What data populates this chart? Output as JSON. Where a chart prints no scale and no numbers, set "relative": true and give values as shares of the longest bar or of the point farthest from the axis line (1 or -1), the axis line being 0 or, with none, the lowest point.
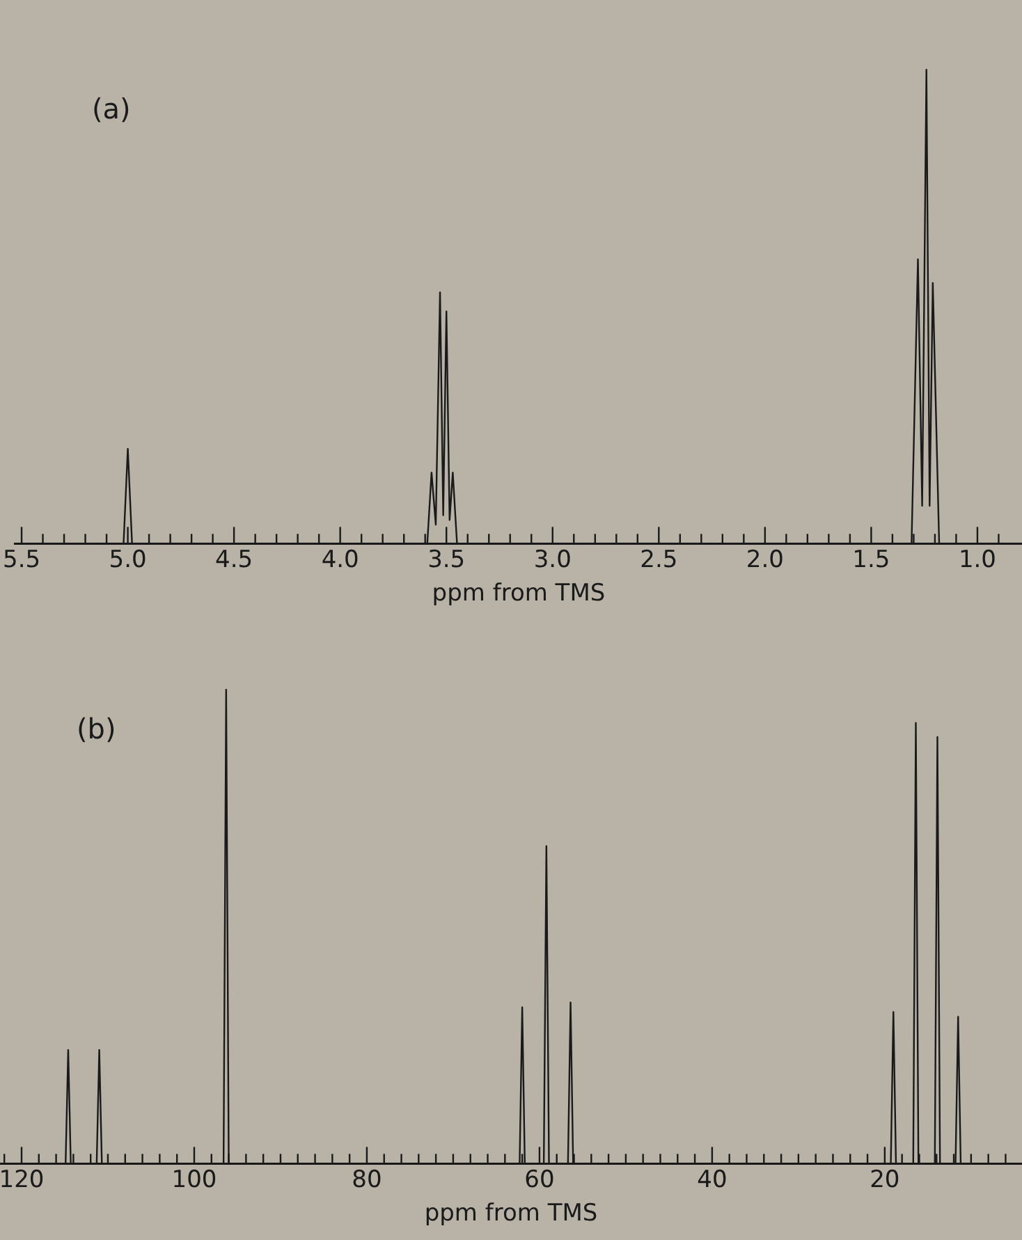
{
  "chart_data": [
    {
      "type": "line",
      "relative": true,
      "xlabel": "ppm from TMS",
      "annotations": [
        "(a)"
      ],
      "marker": "none",
      "xlim": [
        5.53,
        0.79
      ],
      "xticks": [
        5.5,
        {
          "value": 5.4,
          "label": null
        },
        {
          "value": 5.3,
          "label": null
        },
        {
          "value": 5.2,
          "label": null
        },
        {
          "value": 5.1,
          "label": null
        },
        {
          "value": 5,
          "label": "5.0"
        },
        {
          "value": 4.9,
          "label": null
        },
        {
          "value": 4.8,
          "label": null
        },
        {
          "value": 4.7,
          "label": null
        },
        {
          "value": 4.6,
          "label": null
        },
        4.5,
        {
          "value": 4.4,
          "label": null
        },
        {
          "value": 4.3,
          "label": null
        },
        {
          "value": 4.2,
          "label": null
        },
        {
          "value": 4.1,
          "label": null
        },
        {
          "value": 4,
          "label": "4.0"
        },
        {
          "value": 3.9,
          "label": null
        },
        {
          "value": 3.8,
          "label": null
        },
        {
          "value": 3.7,
          "label": null
        },
        {
          "value": 3.6,
          "label": null
        },
        3.5,
        {
          "value": 3.4,
          "label": null
        },
        {
          "value": 3.3,
          "label": null
        },
        {
          "value": 3.2,
          "label": null
        },
        {
          "value": 3.1,
          "label": null
        },
        {
          "value": 3,
          "label": "3.0"
        },
        {
          "value": 2.9,
          "label": null
        },
        {
          "value": 2.8,
          "label": null
        },
        {
          "value": 2.7,
          "label": null
        },
        {
          "value": 2.6,
          "label": null
        },
        2.5,
        {
          "value": 2.4,
          "label": null
        },
        {
          "value": 2.3,
          "label": null
        },
        {
          "value": 2.2,
          "label": null
        },
        {
          "value": 2.1,
          "label": null
        },
        {
          "value": 2,
          "label": "2.0"
        },
        {
          "value": 1.9,
          "label": null
        },
        {
          "value": 1.8,
          "label": null
        },
        {
          "value": 1.7,
          "label": null
        },
        {
          "value": 1.6,
          "label": null
        },
        1.5,
        {
          "value": 1.4,
          "label": null
        },
        {
          "value": 1.3,
          "label": null
        },
        {
          "value": 1.2,
          "label": null
        },
        {
          "value": 1.1,
          "label": null
        },
        {
          "value": 1,
          "label": "1.0"
        },
        {
          "value": 0.9,
          "label": null
        }
      ],
      "series": [
        {
          "color": "#1a1a1a",
          "x": [
            5.53,
            5.02,
            5.0,
            4.98,
            3.59,
            3.57,
            3.55,
            3.53,
            3.515,
            3.5,
            3.485,
            3.47,
            3.45,
            1.31,
            1.28,
            1.26,
            1.24,
            1.225,
            1.21,
            1.18,
            0.79
          ],
          "values": [
            0,
            0,
            0.2,
            0,
            0,
            0.15,
            0.04,
            0.53,
            0.06,
            0.49,
            0.05,
            0.15,
            0,
            0,
            0.6,
            0.08,
            1,
            0.08,
            0.55,
            0,
            0
          ]
        }
      ]
    },
    {
      "type": "line",
      "relative": true,
      "xlabel": "ppm from TMS",
      "annotations": [
        "(b)"
      ],
      "marker": "none",
      "xlim": [
        122.5,
        4.1
      ],
      "xticks": [
        {
          "value": 122,
          "label": null
        },
        120,
        {
          "value": 118,
          "label": null
        },
        {
          "value": 116,
          "label": null
        },
        {
          "value": 114,
          "label": null
        },
        {
          "value": 112,
          "label": null
        },
        {
          "value": 110,
          "label": null
        },
        {
          "value": 108,
          "label": null
        },
        {
          "value": 106,
          "label": null
        },
        {
          "value": 104,
          "label": null
        },
        {
          "value": 102,
          "label": null
        },
        100,
        {
          "value": 98,
          "label": null
        },
        {
          "value": 96,
          "label": null
        },
        {
          "value": 94,
          "label": null
        },
        {
          "value": 92,
          "label": null
        },
        {
          "value": 90,
          "label": null
        },
        {
          "value": 88,
          "label": null
        },
        {
          "value": 86,
          "label": null
        },
        {
          "value": 84,
          "label": null
        },
        {
          "value": 82,
          "label": null
        },
        80,
        {
          "value": 78,
          "label": null
        },
        {
          "value": 76,
          "label": null
        },
        {
          "value": 74,
          "label": null
        },
        {
          "value": 72,
          "label": null
        },
        {
          "value": 70,
          "label": null
        },
        {
          "value": 68,
          "label": null
        },
        {
          "value": 66,
          "label": null
        },
        {
          "value": 64,
          "label": null
        },
        {
          "value": 62,
          "label": null
        },
        60,
        {
          "value": 58,
          "label": null
        },
        {
          "value": 56,
          "label": null
        },
        {
          "value": 54,
          "label": null
        },
        {
          "value": 52,
          "label": null
        },
        {
          "value": 50,
          "label": null
        },
        {
          "value": 48,
          "label": null
        },
        {
          "value": 46,
          "label": null
        },
        {
          "value": 44,
          "label": null
        },
        {
          "value": 42,
          "label": null
        },
        40,
        {
          "value": 38,
          "label": null
        },
        {
          "value": 36,
          "label": null
        },
        {
          "value": 34,
          "label": null
        },
        {
          "value": 32,
          "label": null
        },
        {
          "value": 30,
          "label": null
        },
        {
          "value": 28,
          "label": null
        },
        {
          "value": 26,
          "label": null
        },
        {
          "value": 24,
          "label": null
        },
        {
          "value": 22,
          "label": null
        },
        20,
        {
          "value": 18,
          "label": null
        },
        {
          "value": 16,
          "label": null
        },
        {
          "value": 14,
          "label": null
        },
        {
          "value": 12,
          "label": null
        },
        {
          "value": 10,
          "label": null
        },
        {
          "value": 8,
          "label": null
        },
        {
          "value": 6,
          "label": null
        }
      ],
      "series": [
        {
          "color": "#1a1a1a",
          "x": [
            122.5,
            114.9,
            114.6,
            114.3,
            111.3,
            111,
            110.7,
            96.6,
            96.3,
            96,
            62.3,
            62,
            61.7,
            59.5,
            59.2,
            58.9,
            56.7,
            56.4,
            56.1,
            19.3,
            19,
            18.7,
            16.7,
            16.4,
            16.1,
            14.2,
            13.9,
            13.6,
            11.8,
            11.5,
            11.2,
            4.1
          ],
          "values": [
            0,
            0,
            0.24,
            0,
            0,
            0.24,
            0,
            0,
            1,
            0,
            0,
            0.33,
            0,
            0,
            0.67,
            0,
            0,
            0.34,
            0,
            0,
            0.32,
            0,
            0,
            0.93,
            0,
            0,
            0.9,
            0,
            0,
            0.31,
            0,
            0
          ]
        }
      ]
    }
  ]
}
